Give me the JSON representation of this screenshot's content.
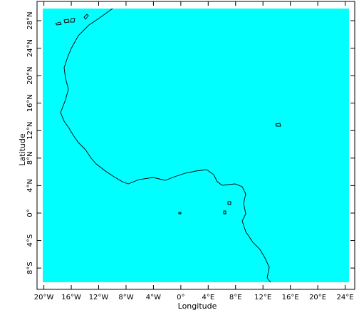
{
  "chart_data": {
    "type": "map",
    "xlabel": "Longitude",
    "ylabel": "Latitude",
    "xlim": [
      -21,
      25.4
    ],
    "ylim": [
      -11.1,
      30.8
    ],
    "xticks": [
      {
        "value": -20,
        "label": "20°W"
      },
      {
        "value": -16,
        "label": "16°W"
      },
      {
        "value": -12,
        "label": "12°W"
      },
      {
        "value": -8,
        "label": "8°W"
      },
      {
        "value": -4,
        "label": "4°W"
      },
      {
        "value": 0,
        "label": "0°"
      },
      {
        "value": 4,
        "label": "4°E"
      },
      {
        "value": 8,
        "label": "8°E"
      },
      {
        "value": 12,
        "label": "12°E"
      },
      {
        "value": 16,
        "label": "16°E"
      },
      {
        "value": 20,
        "label": "20°E"
      },
      {
        "value": 24,
        "label": "24°E"
      }
    ],
    "yticks": [
      {
        "value": -8,
        "label": "8°S"
      },
      {
        "value": -4,
        "label": "4°S"
      },
      {
        "value": 0,
        "label": "0°"
      },
      {
        "value": 4,
        "label": "4°N"
      },
      {
        "value": 8,
        "label": "8°N"
      },
      {
        "value": 12,
        "label": "12°N"
      },
      {
        "value": 16,
        "label": "16°N"
      },
      {
        "value": 20,
        "label": "20°N"
      },
      {
        "value": 24,
        "label": "24°N"
      },
      {
        "value": 28,
        "label": "28°N"
      }
    ],
    "color": "#00ffff"
  }
}
